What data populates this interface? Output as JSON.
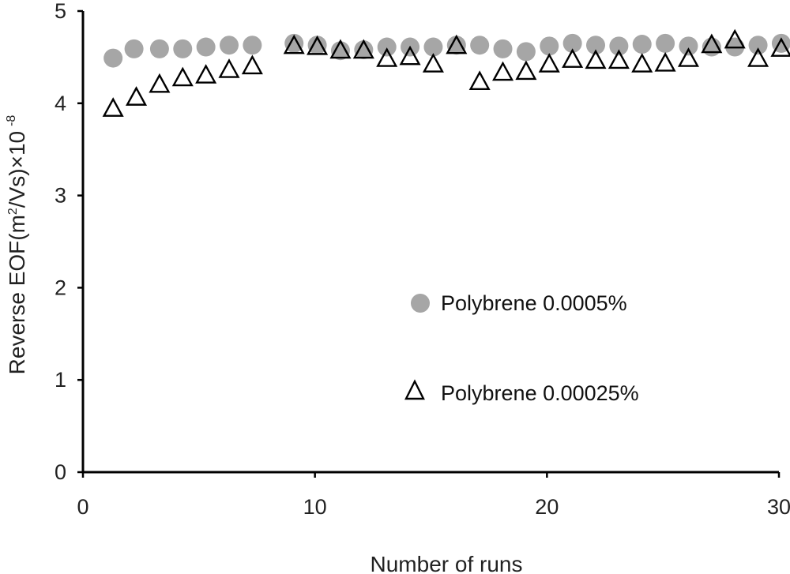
{
  "chart_data": {
    "type": "scatter",
    "xlabel": "Number of runs",
    "ylabel_main": "Reverse EOF(m",
    "ylabel_sup": "2",
    "ylabel_mid": "/Vs)×10",
    "ylabel_exp": "-8",
    "xlim": [
      0,
      30
    ],
    "ylim": [
      0,
      5
    ],
    "x_ticks": [
      0,
      10,
      20,
      30
    ],
    "y_ticks": [
      0,
      1,
      2,
      3,
      4,
      5
    ],
    "grid": false,
    "legend_position": "center-right",
    "series": [
      {
        "name": "Polybrene 0.0005%",
        "marker": "filled-circle",
        "color": "#a6a6a6",
        "points": [
          [
            1.3,
            4.49
          ],
          [
            2.2,
            4.59
          ],
          [
            3.3,
            4.59
          ],
          [
            4.3,
            4.59
          ],
          [
            5.3,
            4.61
          ],
          [
            6.3,
            4.63
          ],
          [
            7.3,
            4.63
          ],
          [
            9.1,
            4.65
          ],
          [
            10.1,
            4.63
          ],
          [
            11.1,
            4.57
          ],
          [
            12.1,
            4.58
          ],
          [
            13.1,
            4.61
          ],
          [
            14.1,
            4.61
          ],
          [
            15.1,
            4.61
          ],
          [
            16.1,
            4.63
          ],
          [
            17.1,
            4.63
          ],
          [
            18.1,
            4.59
          ],
          [
            19.1,
            4.56
          ],
          [
            20.1,
            4.62
          ],
          [
            21.1,
            4.65
          ],
          [
            22.1,
            4.63
          ],
          [
            23.1,
            4.62
          ],
          [
            24.1,
            4.64
          ],
          [
            25.1,
            4.65
          ],
          [
            26.1,
            4.62
          ],
          [
            27.1,
            4.61
          ],
          [
            28.1,
            4.61
          ],
          [
            29.1,
            4.63
          ],
          [
            30.1,
            4.65
          ]
        ]
      },
      {
        "name": "Polybrene 0.00025%",
        "marker": "open-triangle",
        "color": "#000000",
        "points": [
          [
            1.3,
            3.95
          ],
          [
            2.3,
            4.07
          ],
          [
            3.3,
            4.21
          ],
          [
            4.3,
            4.28
          ],
          [
            5.3,
            4.31
          ],
          [
            6.3,
            4.37
          ],
          [
            7.3,
            4.41
          ],
          [
            9.1,
            4.63
          ],
          [
            10.1,
            4.62
          ],
          [
            11.1,
            4.58
          ],
          [
            12.1,
            4.58
          ],
          [
            13.1,
            4.49
          ],
          [
            14.1,
            4.51
          ],
          [
            15.1,
            4.43
          ],
          [
            16.1,
            4.63
          ],
          [
            17.1,
            4.24
          ],
          [
            18.1,
            4.34
          ],
          [
            19.1,
            4.35
          ],
          [
            20.1,
            4.43
          ],
          [
            21.1,
            4.48
          ],
          [
            22.1,
            4.47
          ],
          [
            23.1,
            4.47
          ],
          [
            24.1,
            4.43
          ],
          [
            25.1,
            4.44
          ],
          [
            26.1,
            4.49
          ],
          [
            27.1,
            4.64
          ],
          [
            28.1,
            4.69
          ],
          [
            29.1,
            4.49
          ],
          [
            30.1,
            4.6
          ]
        ]
      }
    ]
  }
}
